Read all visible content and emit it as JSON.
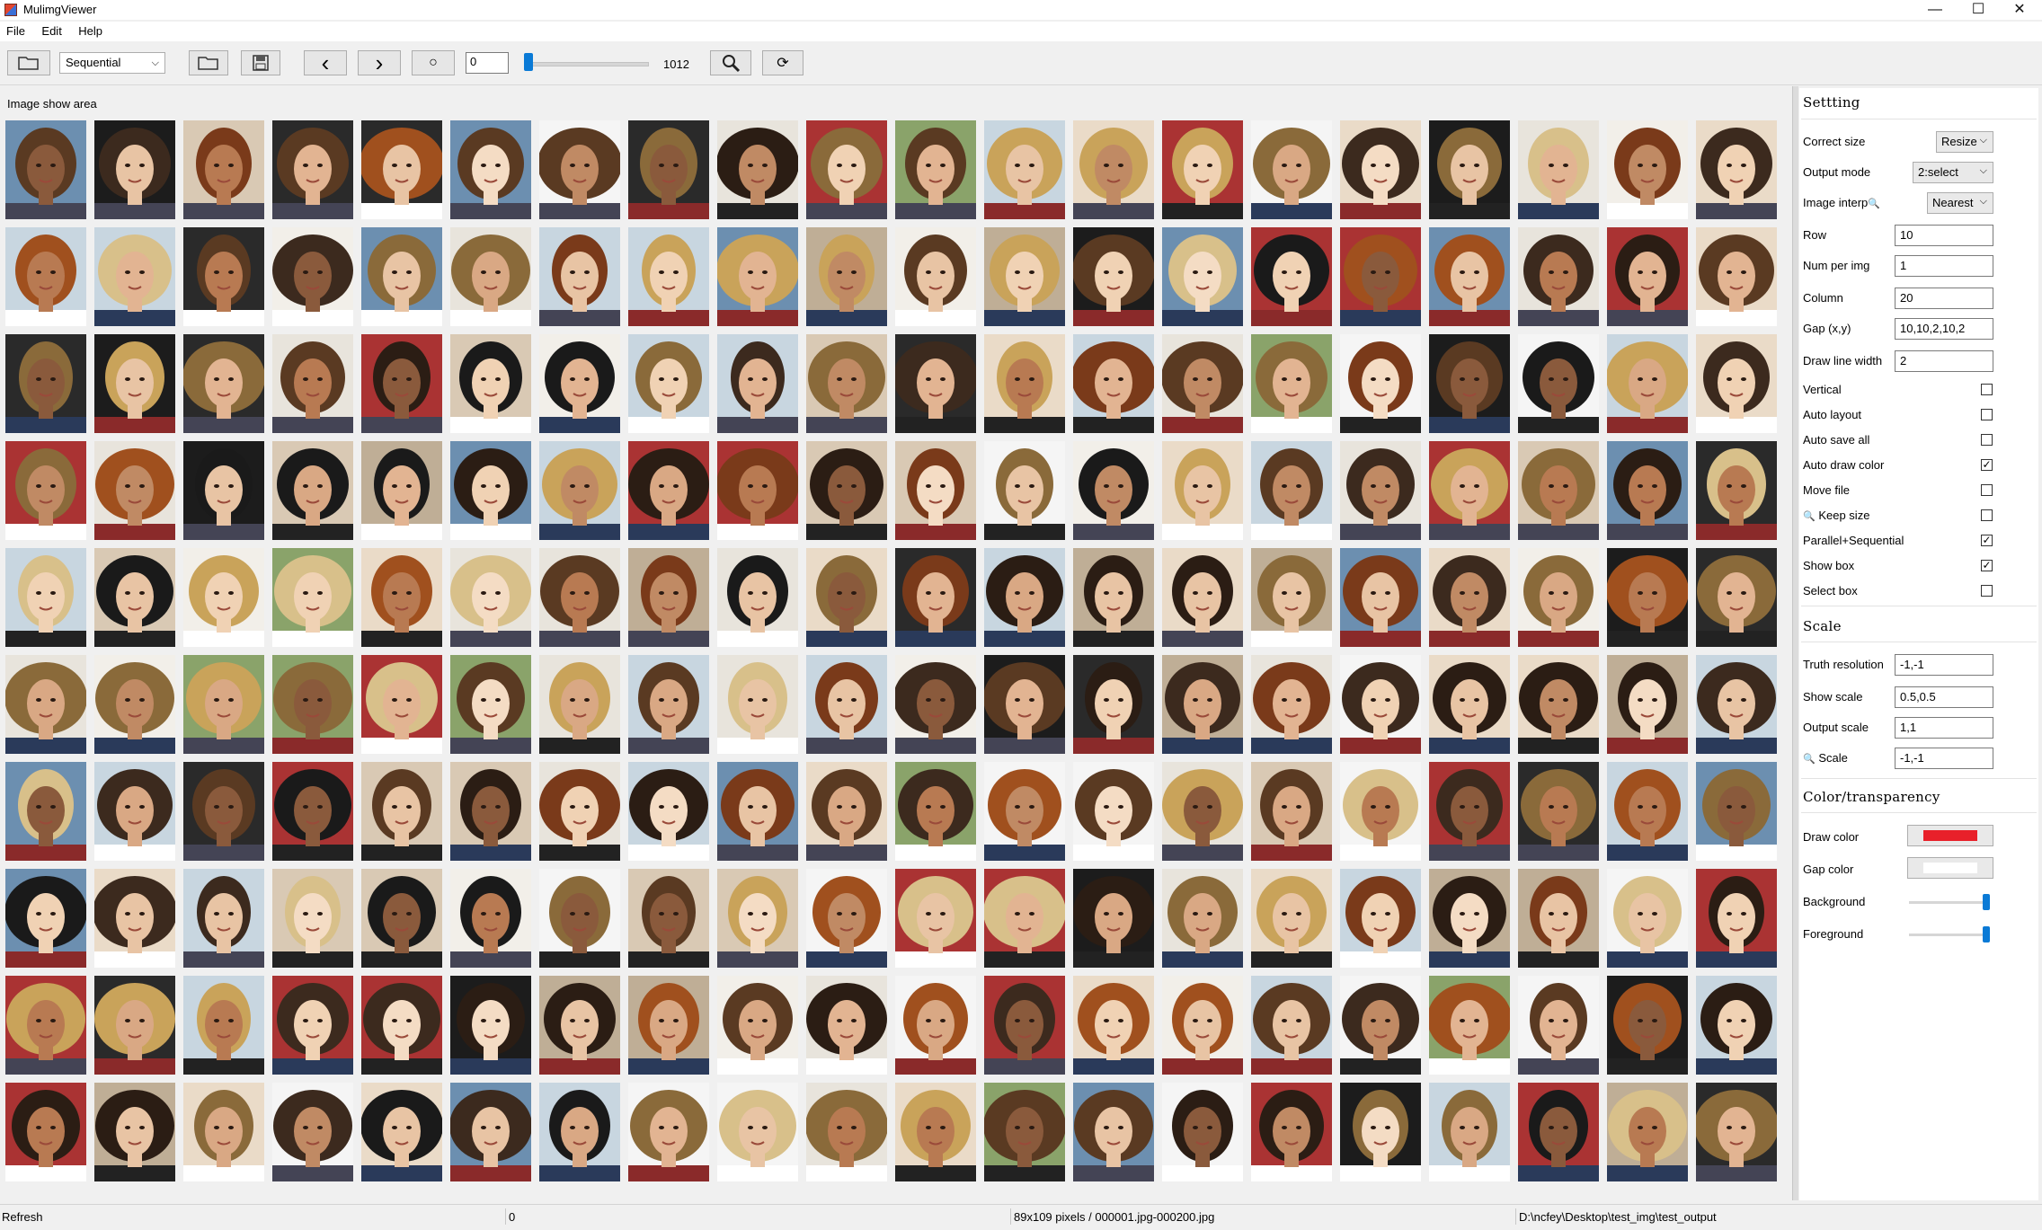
{
  "window": {
    "title": "MulimgViewer",
    "min_glyph": "—",
    "max_glyph": "☐",
    "close_glyph": "✕"
  },
  "menu": [
    "File",
    "Edit",
    "Help"
  ],
  "toolbar": {
    "mode_select": "Sequential",
    "index_value": "0",
    "slider_value": 0,
    "slider_max_label": "1012",
    "icons": [
      "open-folder-icon",
      "open-folder-icon",
      "save-icon",
      "prev-arrow-icon",
      "next-arrow-icon",
      "refresh-icon",
      "magnifier-icon",
      "rotate-icon"
    ],
    "prev_glyph": "‹",
    "next_glyph": "›",
    "refresh_glyph": "○",
    "rotate_glyph": "⟳"
  },
  "image_area": {
    "title": "Image show area",
    "rows": 10,
    "columns": 20
  },
  "settings": {
    "title": "Settting",
    "correct_size": {
      "label": "Correct size",
      "value": "Resize"
    },
    "output_mode": {
      "label": "Output mode",
      "value": "2:select"
    },
    "image_interp": {
      "label": "Image interp",
      "value": "Nearest"
    },
    "row": {
      "label": "Row",
      "value": "10"
    },
    "num_per_img": {
      "label": "Num per img",
      "value": "1"
    },
    "column": {
      "label": "Column",
      "value": "20"
    },
    "gap": {
      "label": "Gap (x,y)",
      "value": "10,10,2,10,2"
    },
    "draw_line_width": {
      "label": "Draw line width",
      "value": "2"
    },
    "checks": [
      {
        "label": "Vertical",
        "checked": false
      },
      {
        "label": "Auto layout",
        "checked": false
      },
      {
        "label": "Auto save all",
        "checked": false
      },
      {
        "label": "Auto draw color",
        "checked": true
      },
      {
        "label": "Move file",
        "checked": false
      },
      {
        "label": "Keep size",
        "checked": false
      },
      {
        "label": "Parallel+Sequential",
        "checked": true
      },
      {
        "label": "Show box",
        "checked": true
      },
      {
        "label": "Select box",
        "checked": false
      }
    ],
    "check_glyph": "✓"
  },
  "scale": {
    "title": "Scale",
    "truth_resolution": {
      "label": "Truth resolution",
      "value": "-1,-1"
    },
    "show_scale": {
      "label": "Show scale",
      "value": "0.5,0.5"
    },
    "output_scale": {
      "label": "Output scale",
      "value": "1,1"
    },
    "scale": {
      "label": "Scale",
      "value": "-1,-1"
    }
  },
  "color": {
    "title": "Color/transparency",
    "draw_color": {
      "label": "Draw  color",
      "hex": "#e8202a"
    },
    "gap_color": {
      "label": "Gap color",
      "hex": "#ffffff"
    },
    "background": {
      "label": "Background",
      "level": 1.0
    },
    "foreground": {
      "label": "Foreground",
      "level": 1.0
    }
  },
  "status": {
    "left": "Refresh",
    "index": "0",
    "info": "89x109 pixels / 000001.jpg-000200.jpg",
    "path": "D:\\ncfey\\Desktop\\test_img\\test_output"
  }
}
